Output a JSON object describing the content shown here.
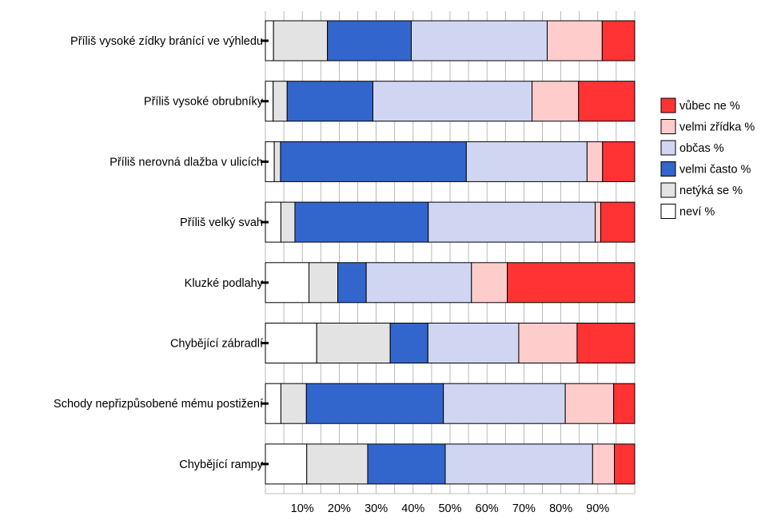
{
  "chart_data": {
    "type": "bar",
    "orientation": "horizontal",
    "stacked": "percent",
    "categories": [
      "Příliš vysoké zídky bránící ve výhledu",
      "Příliš vysoké obrubníky",
      "Příliš nerovná dlažba v ulicích",
      "Příliš velký svah",
      "Kluzké podlahy",
      "Chybějící zábradlí",
      "Schody nepřizpůsobené mému postižení",
      "Chybějící rampy"
    ],
    "series": [
      {
        "name": "neví %",
        "color": "#ffffff",
        "values": [
          2.2,
          2.1,
          2.4,
          4.2,
          11.8,
          13.9,
          4.2,
          11.2
        ]
      },
      {
        "name": "netýká se %",
        "color": "#e3e3e3",
        "values": [
          14.6,
          3.8,
          1.7,
          3.8,
          7.8,
          19.9,
          6.9,
          16.5
        ]
      },
      {
        "name": "velmi často %",
        "color": "#3366cc",
        "values": [
          22.7,
          23.2,
          50.3,
          36.1,
          7.7,
          10.2,
          37.1,
          21.0
        ]
      },
      {
        "name": "občas %",
        "color": "#d0d6f2",
        "values": [
          36.8,
          43.1,
          32.7,
          45.2,
          28.5,
          24.6,
          33.0,
          39.9
        ]
      },
      {
        "name": "velmi zřídka %",
        "color": "#ffcccc",
        "values": [
          14.9,
          12.6,
          4.2,
          1.5,
          9.7,
          15.8,
          13.1,
          5.9
        ]
      },
      {
        "name": "vůbec ne %",
        "color": "#ff3333",
        "values": [
          8.8,
          15.2,
          8.7,
          9.2,
          34.5,
          15.6,
          5.7,
          5.5
        ]
      }
    ],
    "legend_order": [
      "vůbec ne %",
      "velmi zřídka %",
      "občas %",
      "velmi často %",
      "netýká se %",
      "neví %"
    ],
    "xtick_labels": [
      "10%",
      "20%",
      "30%",
      "40%",
      "50%",
      "60%",
      "70%",
      "80%",
      "90%"
    ],
    "xticks": [
      10,
      20,
      30,
      40,
      50,
      60,
      70,
      80,
      90
    ],
    "xlim": [
      0,
      100
    ],
    "grid": true,
    "legend_position": "right"
  }
}
